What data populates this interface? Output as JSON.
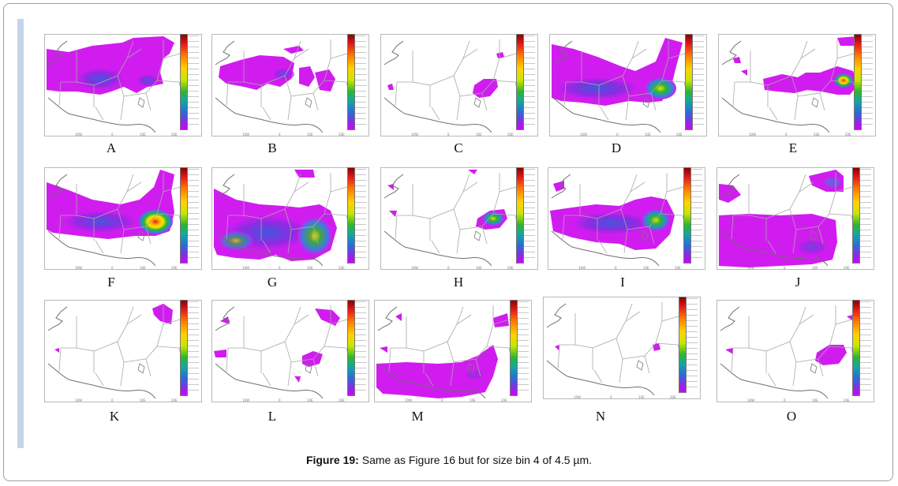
{
  "caption": {
    "label": "Figure 19:",
    "text": " Same as Figure 16 but for size bin 4 of 4.5 µm."
  },
  "panels": [
    {
      "label": "A",
      "intensity": "low"
    },
    {
      "label": "B",
      "intensity": "low"
    },
    {
      "label": "C",
      "intensity": "low"
    },
    {
      "label": "D",
      "intensity": "medium"
    },
    {
      "label": "E",
      "intensity": "high"
    },
    {
      "label": "F",
      "intensity": "high"
    },
    {
      "label": "G",
      "intensity": "medium"
    },
    {
      "label": "H",
      "intensity": "medium"
    },
    {
      "label": "I",
      "intensity": "medium"
    },
    {
      "label": "J",
      "intensity": "low"
    },
    {
      "label": "K",
      "intensity": "low"
    },
    {
      "label": "L",
      "intensity": "low"
    },
    {
      "label": "M",
      "intensity": "low"
    },
    {
      "label": "N",
      "intensity": "low"
    },
    {
      "label": "O",
      "intensity": "low"
    }
  ],
  "colors": {
    "plume_low": "#d11cf0",
    "plume_mid": "#2b8ad6",
    "plume_green": "#2fb52f",
    "plume_yellow": "#f2e600",
    "plume_red": "#e41b1b",
    "frame_accent": "#c6d4ea"
  }
}
